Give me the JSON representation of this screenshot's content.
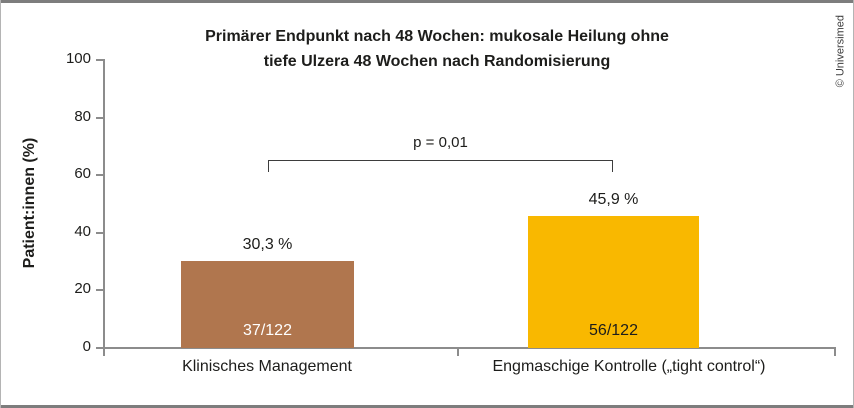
{
  "title": {
    "line1": "Primärer Endpunkt nach 48 Wochen: mukosale Heilung ohne",
    "line2": "tiefe Ulzera 48 Wochen nach Randomisierung"
  },
  "credit": "© Universimed",
  "y_axis": {
    "label": "Patient:innen (%)",
    "ticks": [
      "0",
      "20",
      "40",
      "60",
      "80",
      "100"
    ]
  },
  "significance": {
    "label": "p = 0,01"
  },
  "bars": [
    {
      "category": "Klinisches Management",
      "value": 30.3,
      "percent_label": "30,3 %",
      "count_label": "37/122",
      "color": "#b0764e",
      "count_color": "#ffffff"
    },
    {
      "category": "Engmaschige Kontrolle („tight control“)",
      "value": 45.9,
      "percent_label": "45,9 %",
      "count_label": "56/122",
      "color": "#f9b800",
      "count_color": "#1d1d1b"
    }
  ],
  "chart_data": {
    "type": "bar",
    "categories": [
      "Klinisches Management",
      "Engmaschige Kontrolle („tight control“)"
    ],
    "values": [
      30.3,
      45.9
    ],
    "counts": [
      "37/122",
      "56/122"
    ],
    "n_per_group": 122,
    "bar_colors": [
      "#b0764e",
      "#f9b800"
    ],
    "title": "Primärer Endpunkt nach 48 Wochen: mukosale Heilung ohne tiefe Ulzera 48 Wochen nach Randomisierung",
    "xlabel": "",
    "ylabel": "Patient:innen (%)",
    "ylim": [
      0,
      100
    ],
    "yticks": [
      0,
      20,
      40,
      60,
      80,
      100
    ],
    "grid": false,
    "legend": false,
    "annotations": [
      {
        "type": "significance-bracket",
        "between": [
          0,
          1
        ],
        "label": "p = 0,01"
      }
    ]
  }
}
